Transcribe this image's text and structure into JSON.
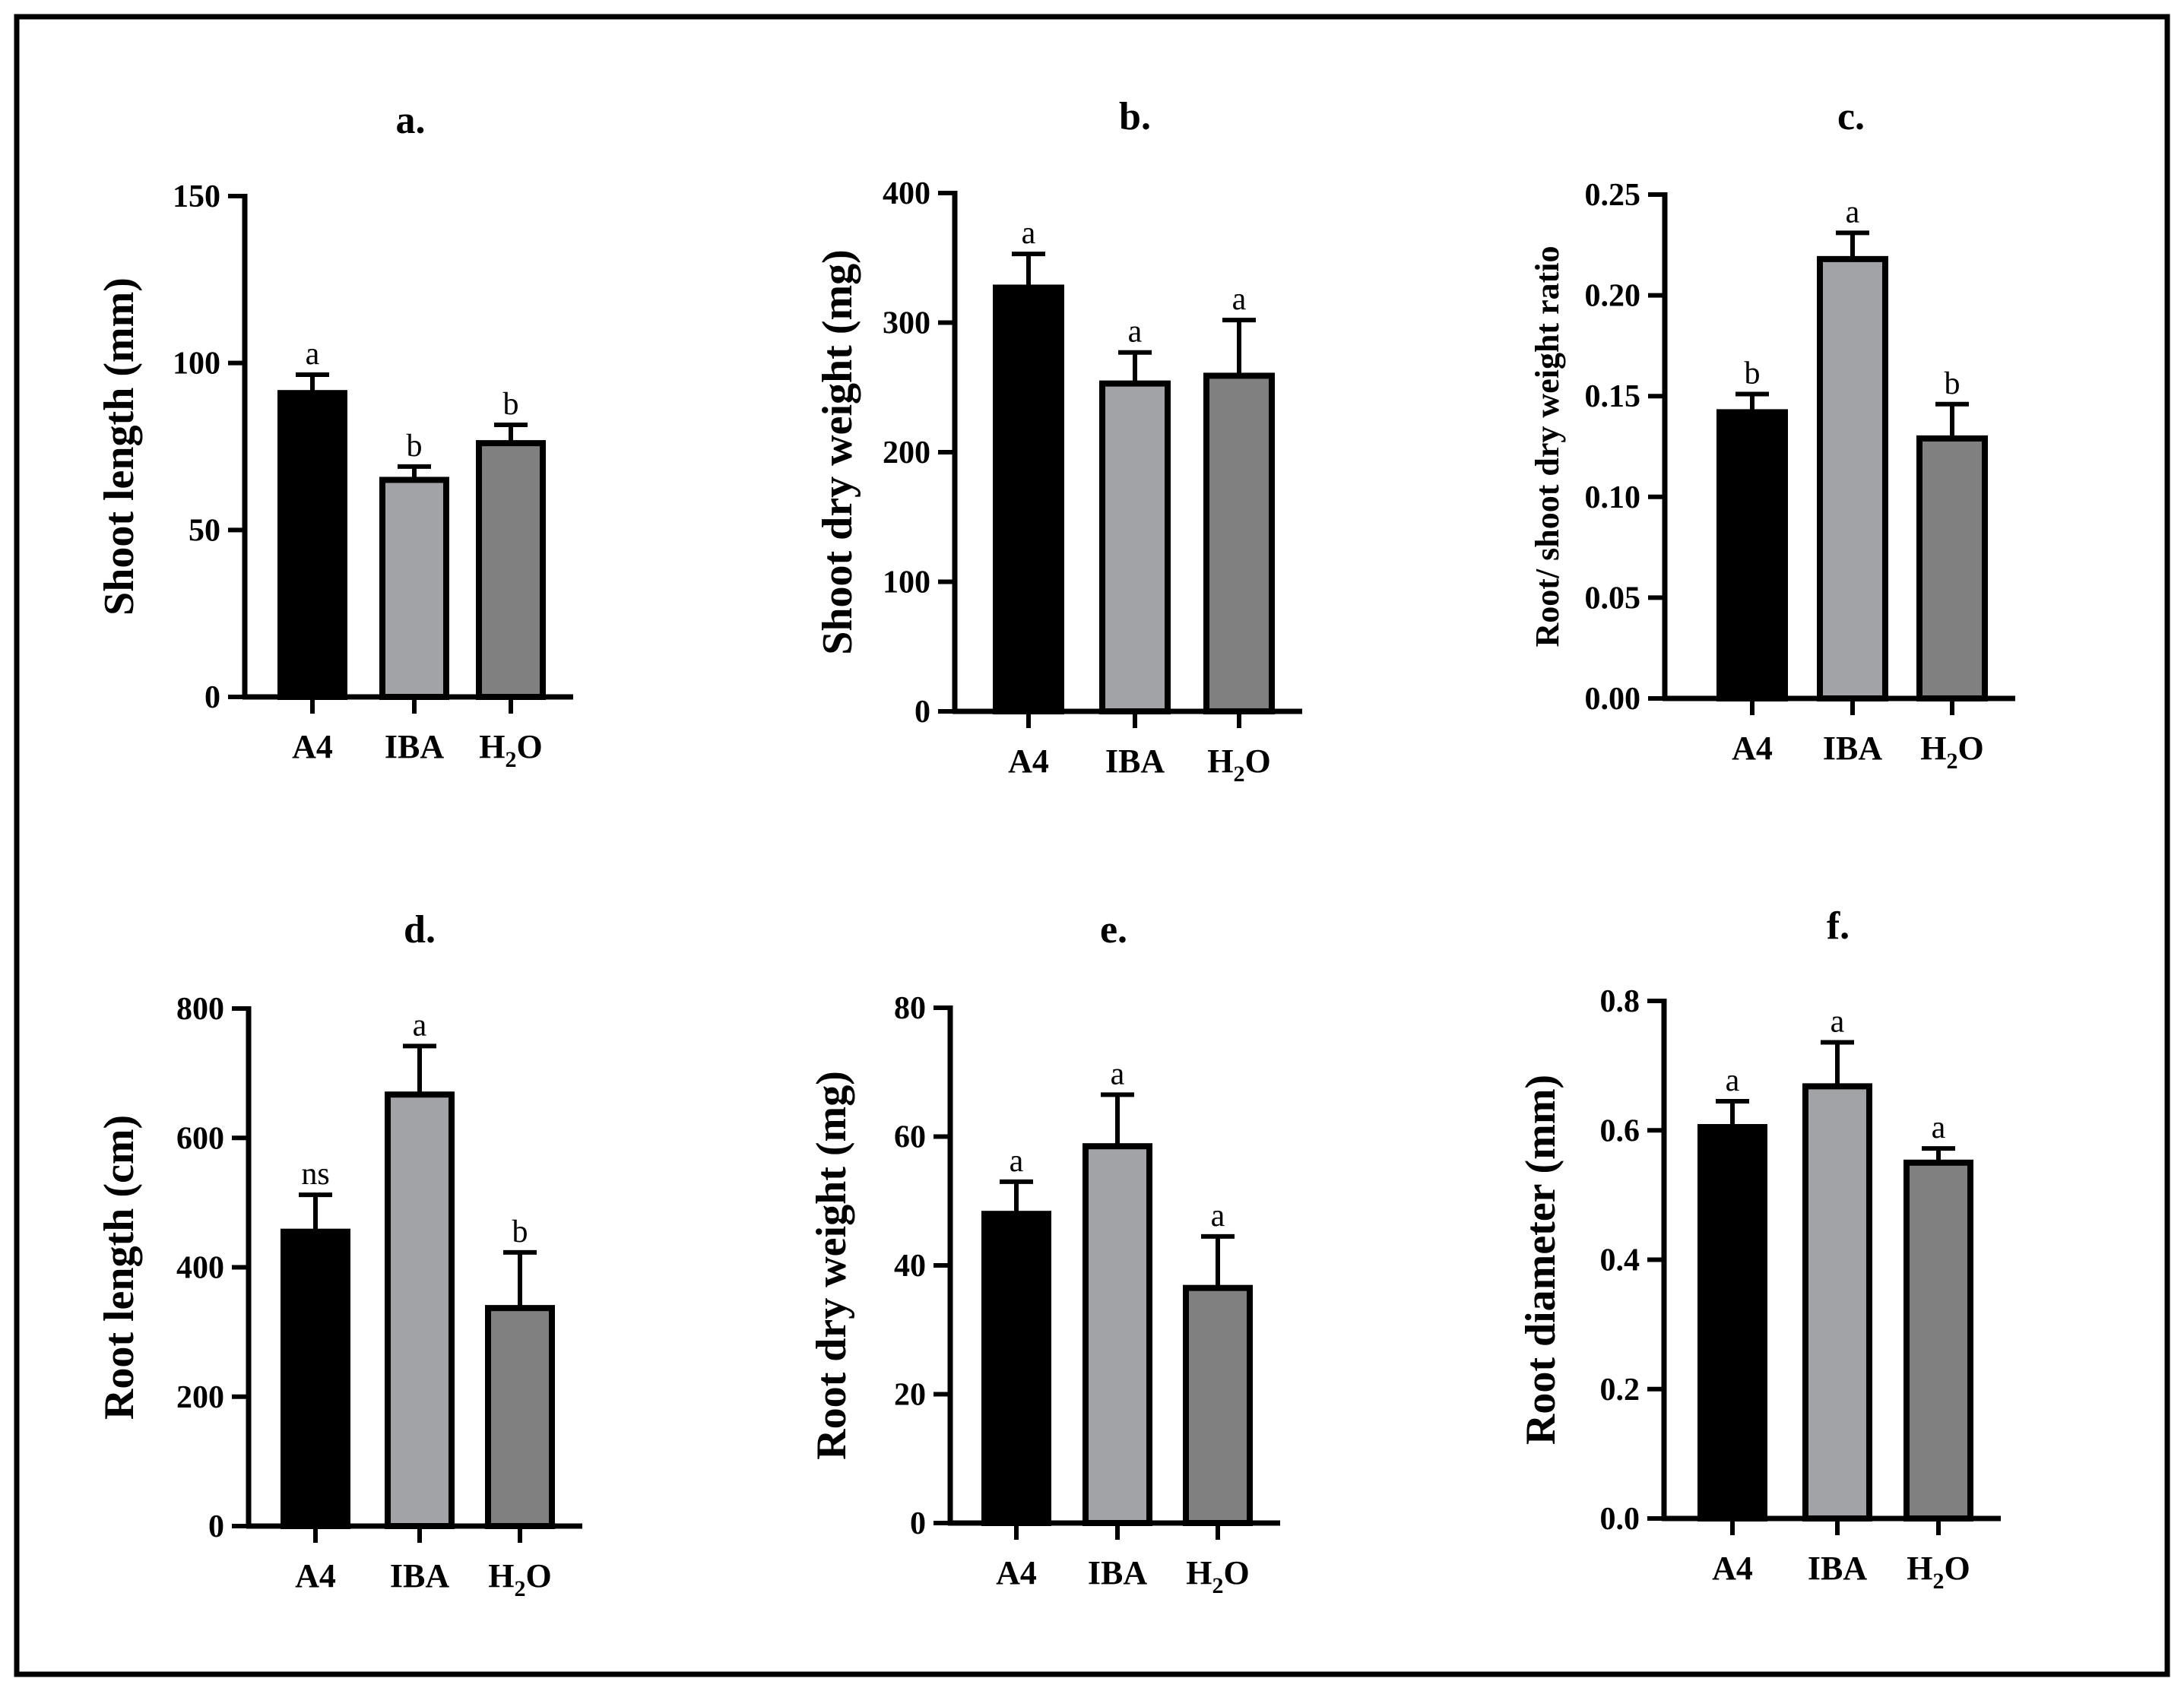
{
  "chart_data": [
    {
      "type": "bar",
      "title": "a.",
      "ylabel": "Shoot length (mm)",
      "categories": [
        "A4",
        "IBA",
        "H2O"
      ],
      "values": [
        91,
        65,
        76
      ],
      "errors": [
        5.5,
        4,
        5.5
      ],
      "significance": [
        "a",
        "b",
        "b"
      ],
      "ylim": [
        0,
        150
      ],
      "yticks": [
        "0",
        "50",
        "100",
        "150"
      ],
      "ytick_values": [
        0,
        50,
        100,
        150
      ]
    },
    {
      "type": "bar",
      "title": "b.",
      "ylabel": "Shoot dry weight (mg)",
      "categories": [
        "A4",
        "IBA",
        "H2O"
      ],
      "values": [
        327,
        253,
        259
      ],
      "errors": [
        26,
        24,
        43
      ],
      "significance": [
        "a",
        "a",
        "a"
      ],
      "ylim": [
        0,
        400
      ],
      "yticks": [
        "0",
        "100",
        "200",
        "300",
        "400"
      ],
      "ytick_values": [
        0,
        100,
        200,
        300,
        400
      ]
    },
    {
      "type": "bar",
      "title": "c.",
      "ylabel": "Root/ shoot dry weight ratio",
      "categories": [
        "A4",
        "IBA",
        "H2O"
      ],
      "values": [
        0.142,
        0.218,
        0.129
      ],
      "errors": [
        0.009,
        0.013,
        0.017
      ],
      "significance": [
        "b",
        "a",
        "b"
      ],
      "ylim": [
        0,
        0.25
      ],
      "yticks": [
        "0.00",
        "0.05",
        "0.10",
        "0.15",
        "0.20",
        "0.25"
      ],
      "ytick_values": [
        0,
        0.05,
        0.1,
        0.15,
        0.2,
        0.25
      ]
    },
    {
      "type": "bar",
      "title": "d.",
      "ylabel": "Root length (cm)",
      "categories": [
        "A4",
        "IBA",
        "H2O"
      ],
      "values": [
        455,
        667,
        337
      ],
      "errors": [
        57,
        75,
        86
      ],
      "significance": [
        "ns",
        "a",
        "b"
      ],
      "ylim": [
        0,
        800
      ],
      "yticks": [
        "0",
        "200",
        "400",
        "600",
        "800"
      ],
      "ytick_values": [
        0,
        200,
        400,
        600,
        800
      ]
    },
    {
      "type": "bar",
      "title": "e.",
      "ylabel": "Root dry weight (mg)",
      "categories": [
        "A4",
        "IBA",
        "H2O"
      ],
      "values": [
        48,
        58.5,
        36.5
      ],
      "errors": [
        5,
        8,
        8
      ],
      "significance": [
        "a",
        "a",
        "a"
      ],
      "ylim": [
        0,
        80
      ],
      "yticks": [
        "0",
        "20",
        "40",
        "60",
        "80"
      ],
      "ytick_values": [
        0,
        20,
        40,
        60,
        80
      ]
    },
    {
      "type": "bar",
      "title": "f.",
      "ylabel": "Root diameter (mm)",
      "categories": [
        "A4",
        "IBA",
        "H2O"
      ],
      "values": [
        0.605,
        0.668,
        0.55
      ],
      "errors": [
        0.04,
        0.068,
        0.022
      ],
      "significance": [
        "a",
        "a",
        "a"
      ],
      "ylim": [
        0,
        0.8
      ],
      "yticks": [
        "0.0",
        "0.2",
        "0.4",
        "0.6",
        "0.8"
      ],
      "ytick_values": [
        0,
        0.2,
        0.4,
        0.6,
        0.8
      ]
    }
  ],
  "colors": {
    "bar_fills": [
      "#000000",
      "#a2a3a6",
      "#808080"
    ],
    "stroke": "#000000",
    "background": "#ffffff"
  }
}
